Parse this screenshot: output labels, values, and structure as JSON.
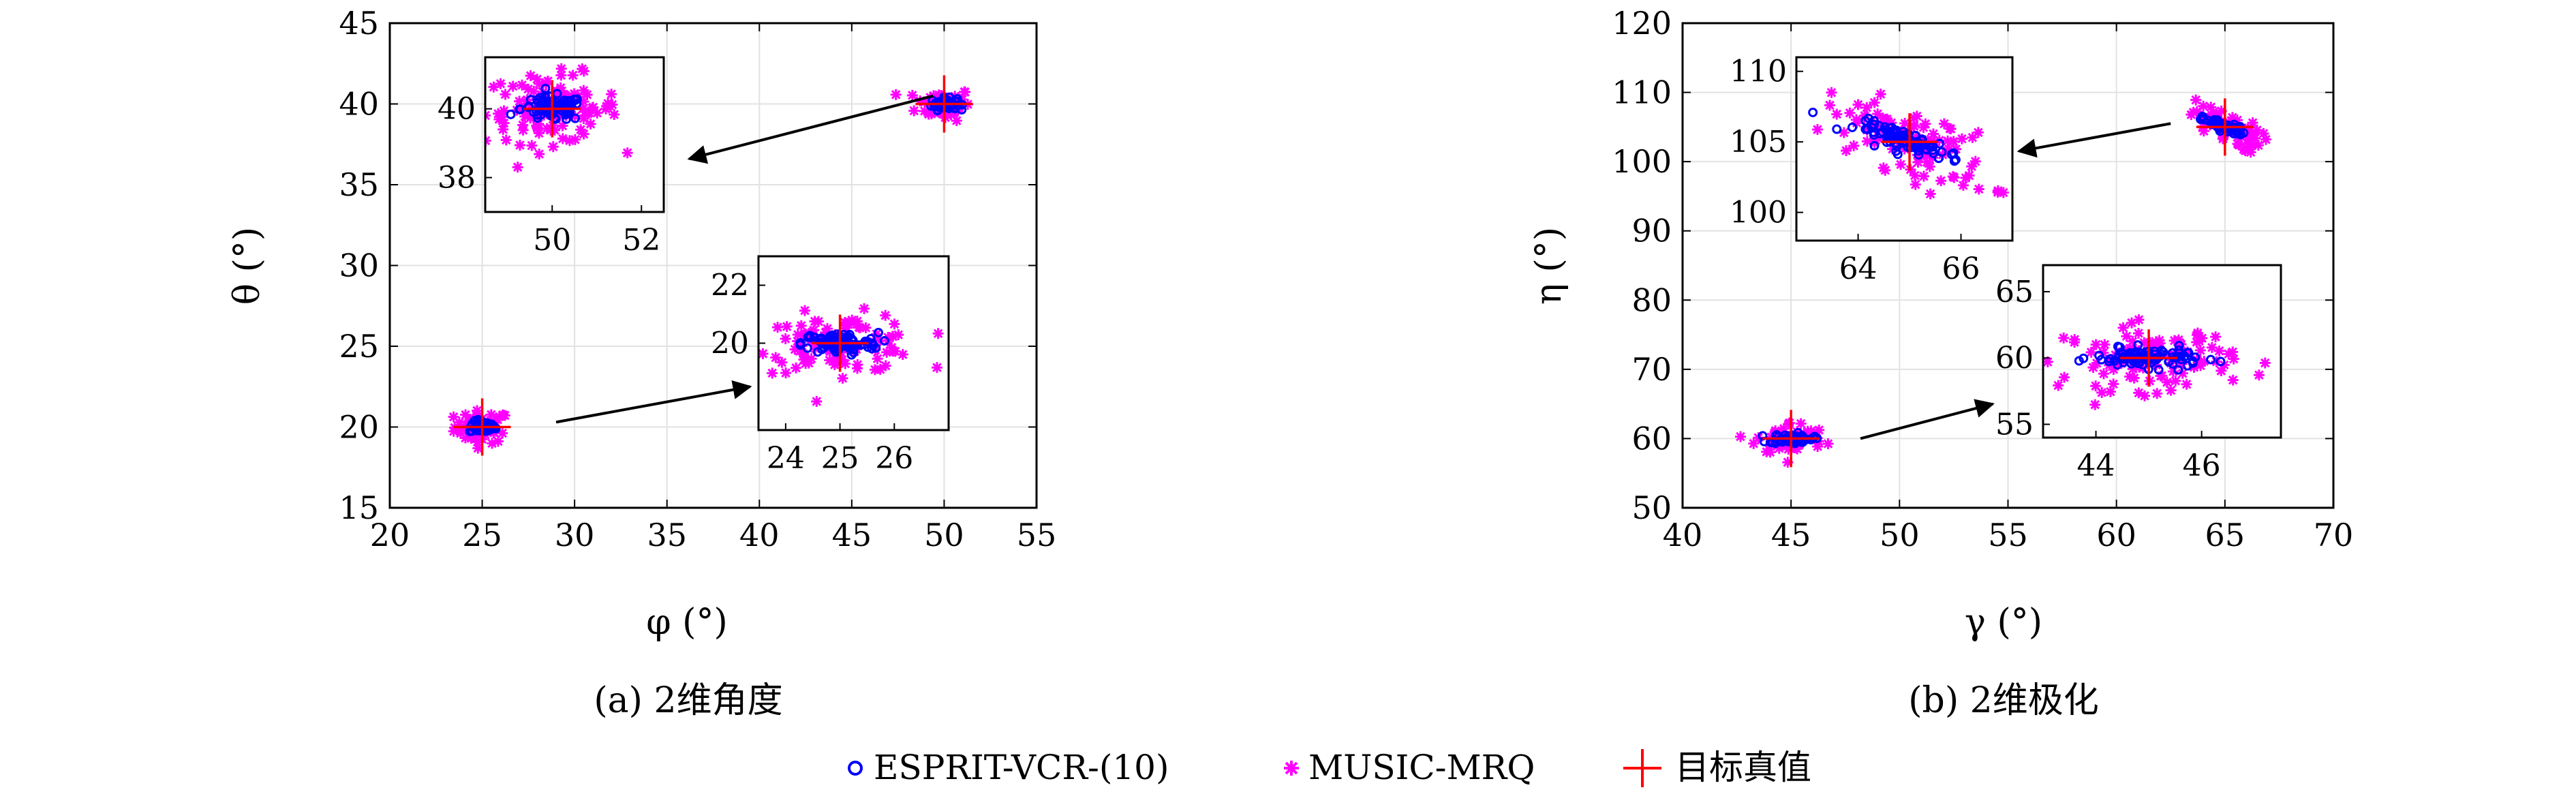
{
  "captions": [
    "(a) 2维角度",
    "(b) 2维极化"
  ],
  "legend": [
    "ESPRIT-VCR-(10)",
    "MUSIC-MRQ",
    "目标真值"
  ],
  "colors": {
    "esprit": "#0000ff",
    "music": "#ff00ff",
    "truth": "#ff0000"
  },
  "chart_data": [
    {
      "type": "scatter",
      "xlabel": "φ (°)",
      "ylabel": "θ (°)",
      "xlim": [
        20,
        55
      ],
      "ylim": [
        15,
        45
      ],
      "xticks": [
        20,
        25,
        30,
        35,
        40,
        45,
        50,
        55
      ],
      "yticks": [
        15,
        20,
        25,
        30,
        35,
        40,
        45
      ],
      "grid": true,
      "targets": [
        {
          "x": 25,
          "y": 20
        },
        {
          "x": 50,
          "y": 40
        }
      ],
      "esprit_spread": [
        0.35,
        0.3
      ],
      "music_spread": [
        0.75,
        0.5
      ],
      "insets": [
        {
          "target": 1,
          "xlim": [
            48.5,
            52.5
          ],
          "ylim": [
            37,
            41.5
          ],
          "xticks": [
            50,
            52
          ],
          "yticks": [
            38,
            40
          ],
          "arrow_from": [
            49.4,
            40.5
          ],
          "arrow_to": [
            36.2,
            36.6
          ]
        },
        {
          "target": 0,
          "xlim": [
            23.5,
            27
          ],
          "ylim": [
            17,
            23
          ],
          "xticks": [
            24,
            25,
            26
          ],
          "yticks": [
            20,
            22
          ],
          "arrow_from": [
            29,
            20.3
          ],
          "arrow_to": [
            39.5,
            22.5
          ]
        }
      ]
    },
    {
      "type": "scatter",
      "xlabel": "γ (°)",
      "ylabel": "η (°)",
      "xlim": [
        40,
        70
      ],
      "ylim": [
        50,
        120
      ],
      "xticks": [
        40,
        45,
        50,
        55,
        60,
        65,
        70
      ],
      "yticks": [
        50,
        60,
        70,
        80,
        90,
        100,
        110,
        120
      ],
      "grid": true,
      "targets": [
        {
          "x": 45,
          "y": 60
        },
        {
          "x": 65,
          "y": 105
        }
      ],
      "esprit_spread": [
        0.5,
        0.6
      ],
      "music_spread": [
        0.8,
        1.2
      ],
      "insets": [
        {
          "target": 1,
          "xlim": [
            62.8,
            67
          ],
          "ylim": [
            98,
            111
          ],
          "xticks": [
            64,
            66
          ],
          "yticks": [
            100,
            105,
            110
          ],
          "arrow_from": [
            62.5,
            105.5
          ],
          "arrow_to": [
            55.5,
            101.5
          ]
        },
        {
          "target": 0,
          "xlim": [
            43,
            47.5
          ],
          "ylim": [
            54,
            67
          ],
          "xticks": [
            44,
            46
          ],
          "yticks": [
            55,
            60,
            65
          ],
          "arrow_from": [
            48.2,
            60
          ],
          "arrow_to": [
            54.3,
            65
          ]
        }
      ]
    }
  ]
}
